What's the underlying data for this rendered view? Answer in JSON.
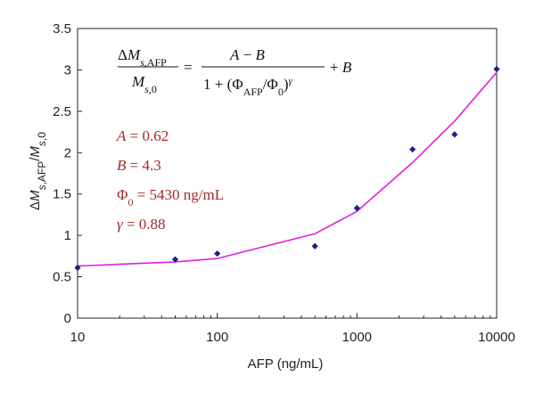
{
  "chart_data": {
    "type": "scatter",
    "xlabel": "AFP (ng/mL)",
    "ylabel": "ΔM s,AFP / M s,0",
    "x_scale": "log",
    "xlim": [
      10,
      10000
    ],
    "ylim": [
      0,
      3.5
    ],
    "x_ticks": [
      "10",
      "100",
      "1000",
      "10000"
    ],
    "x_tick_values": [
      10,
      100,
      1000,
      10000
    ],
    "y_ticks": [
      "0",
      "0.5",
      "1",
      "1.5",
      "2",
      "2.5",
      "3",
      "3.5"
    ],
    "y_tick_values": [
      0,
      0.5,
      1,
      1.5,
      2,
      2.5,
      3,
      3.5
    ],
    "grid": false,
    "series": [
      {
        "kind": "points",
        "color": "#1a237e",
        "x": [
          10,
          50,
          100,
          500,
          1000,
          2500,
          5000,
          10000
        ],
        "y": [
          0.61,
          0.71,
          0.78,
          0.87,
          1.33,
          2.04,
          2.22,
          3.01
        ]
      },
      {
        "kind": "fit-line",
        "color": "#e020e0",
        "x": [
          10,
          50,
          100,
          500,
          1000,
          2500,
          5000,
          10000
        ],
        "y": [
          0.63,
          0.68,
          0.72,
          1.02,
          1.29,
          1.88,
          2.38,
          2.97
        ]
      }
    ],
    "equation": {
      "lhs_num": "ΔM s,AFP",
      "lhs_den": "M s,0",
      "rhs_num": "A − B",
      "rhs_den": "1 + (Φ AFP/Φ 0) γ",
      "tail": "+ B"
    },
    "parameters": [
      {
        "symbol": "A",
        "value": "= 0.62"
      },
      {
        "symbol": "B",
        "value": "= 4.3"
      },
      {
        "symbol": "Φ0",
        "value": "= 5430 ng/mL"
      },
      {
        "symbol": "γ",
        "value": "= 0.88"
      }
    ],
    "param_color": "#a52a2a"
  }
}
